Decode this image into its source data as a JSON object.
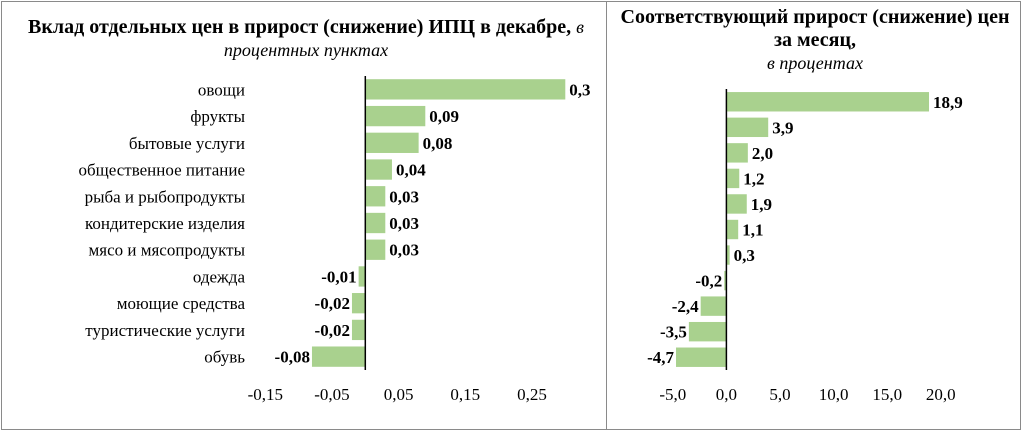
{
  "colors": {
    "bar": "#a9d18e",
    "axis": "#000000",
    "frame": "#8a8a8a"
  },
  "chart_data": [
    {
      "type": "bar",
      "orientation": "horizontal",
      "title": "Вклад отдельных цен в прирост (снижение) ИПЦ в декабре,",
      "subtitle": "в процентных пунктах",
      "categories": [
        "овощи",
        "фрукты",
        "бытовые услуги",
        "общественное питание",
        "рыба и рыбопродукты",
        "кондитерские изделия",
        "мясо и мясопродукты",
        "одежда",
        "моющие средства",
        "туристические услуги",
        "обувь"
      ],
      "values": [
        0.3,
        0.09,
        0.08,
        0.04,
        0.03,
        0.03,
        0.03,
        -0.01,
        -0.02,
        -0.02,
        -0.08
      ],
      "value_labels": [
        "0,3",
        "0,09",
        "0,08",
        "0,04",
        "0,03",
        "0,03",
        "0,03",
        "-0,01",
        "-0,02",
        "-0,02",
        "-0,08"
      ],
      "xlim": [
        -0.15,
        0.3
      ],
      "xticks": [
        -0.15,
        -0.05,
        0.05,
        0.15,
        0.25
      ],
      "xtick_labels": [
        "-0,15",
        "-0,05",
        "0,05",
        "0,15",
        "0,25"
      ],
      "grid": false,
      "legend": "none"
    },
    {
      "type": "bar",
      "orientation": "horizontal",
      "title": "Соответствующий прирост (снижение) цен за месяц,",
      "subtitle": "в процентах",
      "values": [
        18.9,
        3.9,
        2.0,
        1.2,
        1.9,
        1.1,
        0.3,
        -0.2,
        -2.4,
        -3.5,
        -4.7
      ],
      "value_labels": [
        "18,9",
        "3,9",
        "2,0",
        "1,2",
        "1,9",
        "1,1",
        "0,3",
        "-0,2",
        "-2,4",
        "-3,5",
        "-4,7"
      ],
      "xlim": [
        -5.0,
        20.0
      ],
      "xticks": [
        -5.0,
        0.0,
        5.0,
        10.0,
        15.0,
        20.0
      ],
      "xtick_labels": [
        "-5,0",
        "0,0",
        "5,0",
        "10,0",
        "15,0",
        "20,0"
      ],
      "grid": false,
      "legend": "none"
    }
  ]
}
